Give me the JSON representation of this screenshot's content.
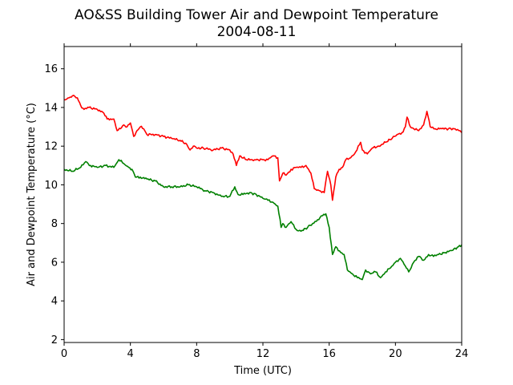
{
  "chart_data": {
    "type": "line",
    "title": "AO&SS Building Tower Air and Dewpoint Temperature",
    "subtitle": "2004-08-11",
    "xlabel": "Time (UTC)",
    "ylabel": "Air and Dewpoint Temperature (°C)",
    "xlim": [
      0,
      24
    ],
    "ylim": [
      1.85,
      17.15
    ],
    "xticks": [
      0,
      4,
      8,
      12,
      16,
      20,
      24
    ],
    "yticks": [
      2,
      4,
      6,
      8,
      10,
      12,
      14,
      16
    ],
    "grid": false,
    "legend": "none",
    "series": [
      {
        "color": "#ff0000",
        "x": [
          0,
          0.3,
          0.5,
          0.8,
          1.0,
          1.2,
          1.5,
          2.0,
          2.4,
          2.6,
          3.0,
          3.2,
          3.4,
          3.6,
          3.8,
          4.0,
          4.2,
          4.4,
          4.6,
          4.8,
          5.0,
          5.5,
          6.0,
          6.5,
          7.0,
          7.4,
          7.6,
          7.8,
          8.0,
          8.4,
          9.0,
          9.5,
          10.0,
          10.2,
          10.4,
          10.6,
          11.0,
          11.5,
          12.0,
          12.3,
          12.6,
          12.9,
          13.0,
          13.2,
          13.4,
          13.7,
          14.0,
          14.3,
          14.6,
          14.9,
          15.1,
          15.4,
          15.7,
          15.9,
          16.1,
          16.2,
          16.4,
          16.6,
          16.8,
          17.0,
          17.3,
          17.6,
          17.9,
          18.0,
          18.3,
          18.6,
          19.0,
          19.4,
          19.8,
          20.1,
          20.4,
          20.6,
          20.7,
          20.9,
          21.1,
          21.4,
          21.7,
          21.9,
          22.1,
          22.4,
          22.8,
          23.2,
          23.6,
          23.9,
          24.0
        ],
        "y": [
          14.4,
          14.5,
          14.6,
          14.5,
          14.1,
          13.9,
          14.0,
          13.9,
          13.7,
          13.4,
          13.4,
          12.8,
          12.9,
          13.1,
          13.0,
          13.2,
          12.5,
          12.8,
          13.0,
          12.9,
          12.6,
          12.6,
          12.5,
          12.4,
          12.3,
          12.1,
          11.8,
          12.0,
          11.9,
          11.9,
          11.8,
          11.9,
          11.8,
          11.6,
          11.0,
          11.5,
          11.3,
          11.3,
          11.3,
          11.3,
          11.5,
          11.4,
          10.2,
          10.6,
          10.5,
          10.8,
          10.9,
          10.9,
          11.0,
          10.6,
          9.8,
          9.7,
          9.6,
          10.7,
          10.0,
          9.2,
          10.4,
          10.8,
          10.9,
          11.3,
          11.4,
          11.7,
          12.2,
          11.8,
          11.6,
          11.9,
          12.0,
          12.2,
          12.4,
          12.6,
          12.7,
          13.0,
          13.5,
          13.0,
          12.9,
          12.8,
          13.1,
          13.8,
          13.0,
          12.9,
          12.9,
          12.9,
          12.9,
          12.8,
          12.7
        ]
      },
      {
        "color": "#008000",
        "x": [
          0,
          0.5,
          1.0,
          1.3,
          1.6,
          2.0,
          2.5,
          3.0,
          3.3,
          3.6,
          3.9,
          4.1,
          4.3,
          4.6,
          5.0,
          5.5,
          6.0,
          6.5,
          7.0,
          7.5,
          8.0,
          8.5,
          9.0,
          9.5,
          10.0,
          10.3,
          10.5,
          10.8,
          11.2,
          11.6,
          12.0,
          12.3,
          12.6,
          12.9,
          13.1,
          13.2,
          13.4,
          13.7,
          14.0,
          14.3,
          14.7,
          15.0,
          15.3,
          15.6,
          15.8,
          16.0,
          16.2,
          16.4,
          16.7,
          16.9,
          17.1,
          17.4,
          17.7,
          18.0,
          18.2,
          18.5,
          18.8,
          19.1,
          19.4,
          19.7,
          20.0,
          20.3,
          20.6,
          20.8,
          21.1,
          21.4,
          21.7,
          22.0,
          22.3,
          22.6,
          23.0,
          23.4,
          23.8,
          24.0
        ],
        "y": [
          10.8,
          10.7,
          10.9,
          11.2,
          11.0,
          10.9,
          11.0,
          10.9,
          11.3,
          11.1,
          10.9,
          10.8,
          10.4,
          10.4,
          10.3,
          10.2,
          9.9,
          9.9,
          9.9,
          10.0,
          9.9,
          9.7,
          9.6,
          9.4,
          9.4,
          9.9,
          9.5,
          9.5,
          9.6,
          9.5,
          9.3,
          9.2,
          9.1,
          8.9,
          7.8,
          8.0,
          7.8,
          8.1,
          7.7,
          7.6,
          7.8,
          8.0,
          8.2,
          8.4,
          8.5,
          7.8,
          6.4,
          6.8,
          6.5,
          6.4,
          5.6,
          5.4,
          5.2,
          5.1,
          5.6,
          5.4,
          5.5,
          5.2,
          5.5,
          5.7,
          6.0,
          6.2,
          5.8,
          5.5,
          6.0,
          6.3,
          6.1,
          6.4,
          6.3,
          6.4,
          6.5,
          6.6,
          6.8,
          6.9
        ]
      }
    ]
  }
}
